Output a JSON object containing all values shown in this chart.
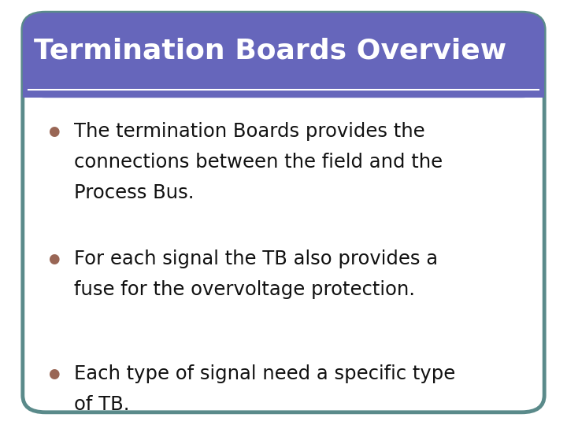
{
  "title": "Termination Boards Overview",
  "title_bg_color": "#6666bb",
  "title_text_color": "#ffffff",
  "title_fontsize": 26,
  "body_bg_color": "#ffffff",
  "body_border_color": "#5a8a8a",
  "bullet_color": "#996655",
  "bullet_text_color": "#111111",
  "bullet_fontsize": 17.5,
  "white_line_color": "#ffffff",
  "outer_bg_color": "#ffffff",
  "bullets": [
    [
      "The termination Boards provides the",
      "connections between the field and the",
      "Process Bus."
    ],
    [
      "For each signal the TB also provides a",
      "fuse for the overvoltage protection."
    ],
    [
      "Each type of signal need a specific type",
      "of TB."
    ]
  ]
}
